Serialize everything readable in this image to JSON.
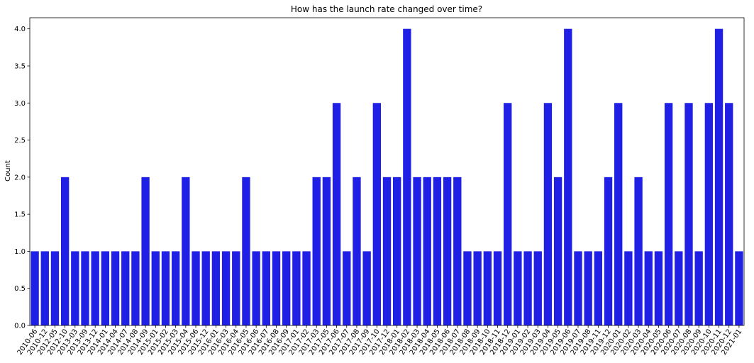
{
  "chart_data": {
    "type": "bar",
    "title": "How has the launch rate changed over time?",
    "xlabel": "",
    "ylabel": "Count",
    "ylim": [
      0,
      4.15
    ],
    "yticks": [
      "0.0",
      "0.5",
      "1.0",
      "1.5",
      "2.0",
      "2.5",
      "3.0",
      "3.5",
      "4.0"
    ],
    "grid": false,
    "bar_color": "#1f1fe6",
    "categories": [
      "2010-06",
      "2010-12",
      "2012-05",
      "2012-10",
      "2013-03",
      "2013-09",
      "2013-12",
      "2014-01",
      "2014-04",
      "2014-07",
      "2014-08",
      "2014-09",
      "2015-01",
      "2015-02",
      "2015-03",
      "2015-04",
      "2015-06",
      "2015-12",
      "2016-01",
      "2016-03",
      "2016-04",
      "2016-05",
      "2016-06",
      "2016-07",
      "2016-08",
      "2016-09",
      "2017-01",
      "2017-02",
      "2017-03",
      "2017-05",
      "2017-06",
      "2017-07",
      "2017-08",
      "2017-09",
      "2017-10",
      "2017-12",
      "2018-01",
      "2018-02",
      "2018-03",
      "2018-04",
      "2018-05",
      "2018-06",
      "2018-07",
      "2018-08",
      "2018-09",
      "2018-10",
      "2018-11",
      "2018-12",
      "2019-01",
      "2019-02",
      "2019-03",
      "2019-04",
      "2019-05",
      "2019-06",
      "2019-07",
      "2019-08",
      "2019-11",
      "2019-12",
      "2020-01",
      "2020-02",
      "2020-03",
      "2020-04",
      "2020-05",
      "2020-06",
      "2020-07",
      "2020-08",
      "2020-09",
      "2020-10",
      "2020-11",
      "2020-12",
      "2021-01"
    ],
    "values": [
      1,
      1,
      1,
      2,
      1,
      1,
      1,
      1,
      1,
      1,
      1,
      2,
      1,
      1,
      1,
      2,
      1,
      1,
      1,
      1,
      1,
      2,
      1,
      1,
      1,
      1,
      1,
      1,
      2,
      2,
      3,
      1,
      2,
      1,
      3,
      2,
      2,
      4,
      2,
      2,
      2,
      2,
      2,
      1,
      1,
      1,
      1,
      3,
      1,
      1,
      1,
      3,
      2,
      4,
      1,
      1,
      1,
      2,
      3,
      1,
      2,
      1,
      1,
      3,
      1,
      3,
      1,
      3,
      4,
      3,
      1
    ]
  }
}
